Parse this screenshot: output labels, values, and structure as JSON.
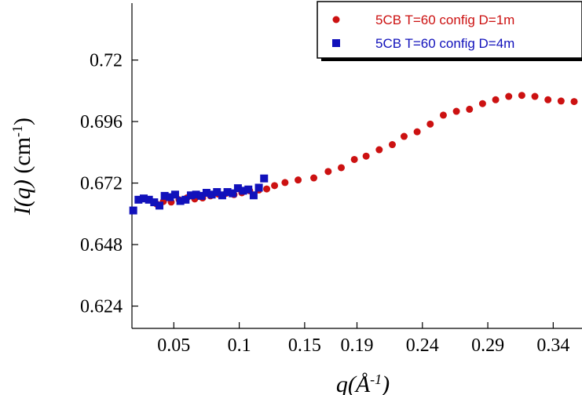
{
  "chart_data": {
    "type": "scatter",
    "xlim": [
      0.018,
      0.362
    ],
    "ylim": [
      0.6153,
      0.7422
    ],
    "xticks": [
      {
        "value": 0.05,
        "label": "0.05"
      },
      {
        "value": 0.1,
        "label": "0.1"
      },
      {
        "value": 0.15,
        "label": "0.15"
      },
      {
        "value": 0.19,
        "label": "0.19"
      },
      {
        "value": 0.24,
        "label": "0.24"
      },
      {
        "value": 0.29,
        "label": "0.29"
      },
      {
        "value": 0.34,
        "label": "0.34"
      }
    ],
    "yticks": [
      {
        "value": 0.624,
        "label": "0.624"
      },
      {
        "value": 0.648,
        "label": "0.648"
      },
      {
        "value": 0.672,
        "label": "0.672"
      },
      {
        "value": 0.696,
        "label": "0.696"
      },
      {
        "value": 0.72,
        "label": "0.72"
      }
    ],
    "xlabel": "q(Å⁻¹)",
    "ylabel": "I(q) (cm⁻¹)",
    "legend_position": "top-right",
    "series": [
      {
        "name": "5CB T=60 config D=1m",
        "color": "#cc1111",
        "marker": "circle",
        "points": [
          [
            0.037,
            0.6638
          ],
          [
            0.042,
            0.6648
          ],
          [
            0.048,
            0.6646
          ],
          [
            0.054,
            0.6655
          ],
          [
            0.06,
            0.6662
          ],
          [
            0.066,
            0.6658
          ],
          [
            0.072,
            0.6662
          ],
          [
            0.078,
            0.667
          ],
          [
            0.084,
            0.6677
          ],
          [
            0.09,
            0.668
          ],
          [
            0.096,
            0.6675
          ],
          [
            0.102,
            0.6682
          ],
          [
            0.108,
            0.669
          ],
          [
            0.115,
            0.6693
          ],
          [
            0.121,
            0.6697
          ],
          [
            0.127,
            0.671
          ],
          [
            0.135,
            0.6722
          ],
          [
            0.145,
            0.6732
          ],
          [
            0.157,
            0.674
          ],
          [
            0.168,
            0.6765
          ],
          [
            0.178,
            0.678
          ],
          [
            0.188,
            0.6812
          ],
          [
            0.197,
            0.6825
          ],
          [
            0.207,
            0.685
          ],
          [
            0.217,
            0.687
          ],
          [
            0.226,
            0.6902
          ],
          [
            0.236,
            0.692
          ],
          [
            0.246,
            0.695
          ],
          [
            0.256,
            0.6985
          ],
          [
            0.266,
            0.7
          ],
          [
            0.276,
            0.7008
          ],
          [
            0.286,
            0.703
          ],
          [
            0.296,
            0.7045
          ],
          [
            0.306,
            0.7058
          ],
          [
            0.316,
            0.7062
          ],
          [
            0.326,
            0.7058
          ],
          [
            0.336,
            0.7045
          ],
          [
            0.346,
            0.704
          ],
          [
            0.356,
            0.7038
          ]
        ]
      },
      {
        "name": "5CB T=60 config D=4m",
        "color": "#1111bb",
        "marker": "square",
        "points": [
          [
            0.019,
            0.6613
          ],
          [
            0.023,
            0.6655
          ],
          [
            0.027,
            0.666
          ],
          [
            0.031,
            0.6655
          ],
          [
            0.035,
            0.6645
          ],
          [
            0.039,
            0.6632
          ],
          [
            0.043,
            0.667
          ],
          [
            0.047,
            0.6665
          ],
          [
            0.051,
            0.6675
          ],
          [
            0.055,
            0.665
          ],
          [
            0.059,
            0.6655
          ],
          [
            0.063,
            0.6672
          ],
          [
            0.067,
            0.6675
          ],
          [
            0.071,
            0.667
          ],
          [
            0.075,
            0.6682
          ],
          [
            0.079,
            0.6675
          ],
          [
            0.083,
            0.6685
          ],
          [
            0.087,
            0.6672
          ],
          [
            0.091,
            0.6685
          ],
          [
            0.095,
            0.668
          ],
          [
            0.099,
            0.67
          ],
          [
            0.103,
            0.669
          ],
          [
            0.107,
            0.6695
          ],
          [
            0.111,
            0.6672
          ],
          [
            0.115,
            0.6702
          ],
          [
            0.119,
            0.6738
          ]
        ]
      }
    ]
  }
}
